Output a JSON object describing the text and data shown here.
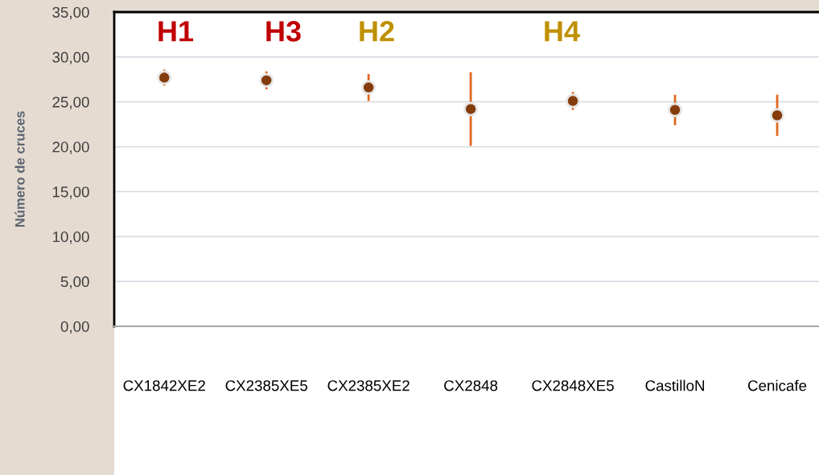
{
  "chart_data": {
    "type": "scatter",
    "ylabel": "Número de cruces",
    "categories": [
      "CX1842XE2",
      "CX2385XE5",
      "CX2385XE2",
      "CX2848",
      "CX2848XE5",
      "CastilloN",
      "Cenicafe"
    ],
    "values": [
      27.7,
      27.4,
      26.6,
      24.2,
      25.1,
      24.1,
      23.5
    ],
    "errors": [
      0.9,
      1.0,
      1.5,
      4.1,
      1.0,
      1.7,
      2.3
    ],
    "color": "#843c0c",
    "marker": "circle",
    "ylim": [
      0,
      35
    ],
    "yticks": [
      {
        "value": 0,
        "label": "0,00"
      },
      {
        "value": 5,
        "label": "5,00"
      },
      {
        "value": 10,
        "label": "10,00"
      },
      {
        "value": 15,
        "label": "15,00"
      },
      {
        "value": 20,
        "label": "20,00"
      },
      {
        "value": 25,
        "label": "25,00"
      },
      {
        "value": 30,
        "label": "30,00"
      },
      {
        "value": 35,
        "label": "35,00"
      }
    ],
    "grid": "y",
    "annotations": [
      "H1",
      "H3",
      "H2",
      "H4"
    ]
  }
}
